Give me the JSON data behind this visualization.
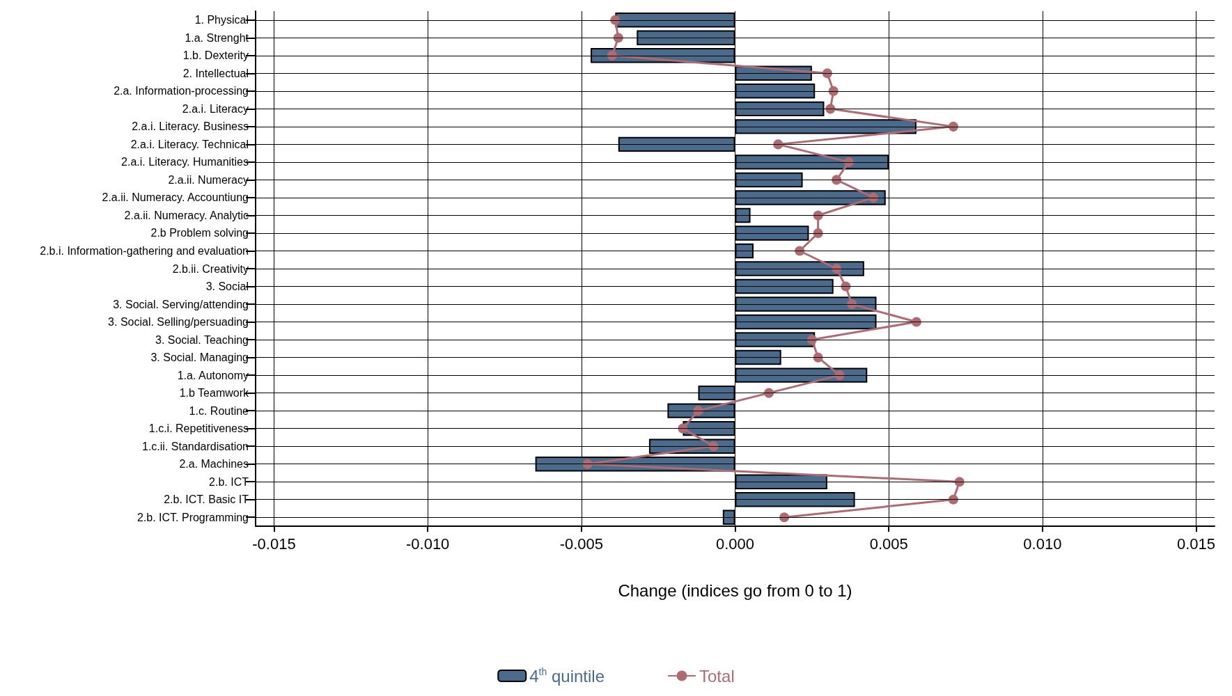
{
  "chart_data": {
    "type": "bar",
    "orientation": "horizontal",
    "xlabel": "Change (indices go from 0 to 1)",
    "categories": [
      "1. Physical",
      "1.a. Strenght",
      "1.b. Dexterity",
      "2. Intellectual",
      "2.a. Information-processing",
      "2.a.i. Literacy",
      "2.a.i. Literacy. Business",
      "2.a.i. Literacy. Technical",
      "2.a.i. Literacy. Humanities",
      "2.a.ii. Numeracy",
      "2.a.ii. Numeracy. Accountiung",
      "2.a.ii. Numeracy. Analytic",
      "2.b Problem solving",
      "2.b.i. Information-gathering and evaluation",
      "2.b.ii. Creativity",
      "3. Social",
      "3. Social. Serving/attending",
      "3. Social. Selling/persuading",
      "3. Social. Teaching",
      "3. Social. Managing",
      "1.a. Autonomy",
      "1.b Teamwork",
      "1.c. Routine",
      "1.c.i. Repetitiveness",
      "1.c.ii. Standardisation",
      "2.a. Machines",
      "2.b. ICT",
      "2.b. ICT. Basic IT",
      "2.b. ICT. Programming"
    ],
    "series": [
      {
        "name": "4$^{th}$ quintile",
        "color": "#4a6b8c",
        "values": [
          -0.0039,
          -0.0032,
          -0.0047,
          0.0025,
          0.0026,
          0.0029,
          0.0059,
          -0.0038,
          0.005,
          0.0022,
          0.0049,
          0.0005,
          0.0024,
          0.0006,
          0.0042,
          0.0032,
          0.0046,
          0.0046,
          0.0026,
          0.0015,
          0.0043,
          -0.0012,
          -0.0022,
          -0.0017,
          -0.0028,
          -0.0065,
          0.003,
          0.0039,
          -0.0004
        ]
      },
      {
        "name": "Total",
        "type": "line",
        "color": "#b06a72",
        "values": [
          -0.0039,
          -0.0038,
          -0.004,
          0.003,
          0.0032,
          0.0031,
          0.0071,
          0.0014,
          0.0037,
          0.0033,
          0.0045,
          0.0027,
          0.0027,
          0.0021,
          0.0033,
          0.0036,
          0.0038,
          0.0059,
          0.0025,
          0.0027,
          0.0034,
          0.0011,
          -0.0012,
          -0.0017,
          -0.0007,
          -0.0048,
          0.0073,
          0.0071,
          0.0016
        ]
      }
    ],
    "xlim": [
      -0.0156,
      0.0156
    ],
    "xticks": [
      {
        "value": -0.015,
        "label": "-0.015"
      },
      {
        "value": -0.01,
        "label": "-0.010"
      },
      {
        "value": -0.005,
        "label": "-0.005"
      },
      {
        "value": 0,
        "label": "0.000"
      },
      {
        "value": 0.005,
        "label": "0.005"
      },
      {
        "value": 0.01,
        "label": "0.010"
      },
      {
        "value": 0.015,
        "label": "0.015"
      }
    ],
    "grid": true,
    "legend": "bottom",
    "marker": "circle"
  }
}
